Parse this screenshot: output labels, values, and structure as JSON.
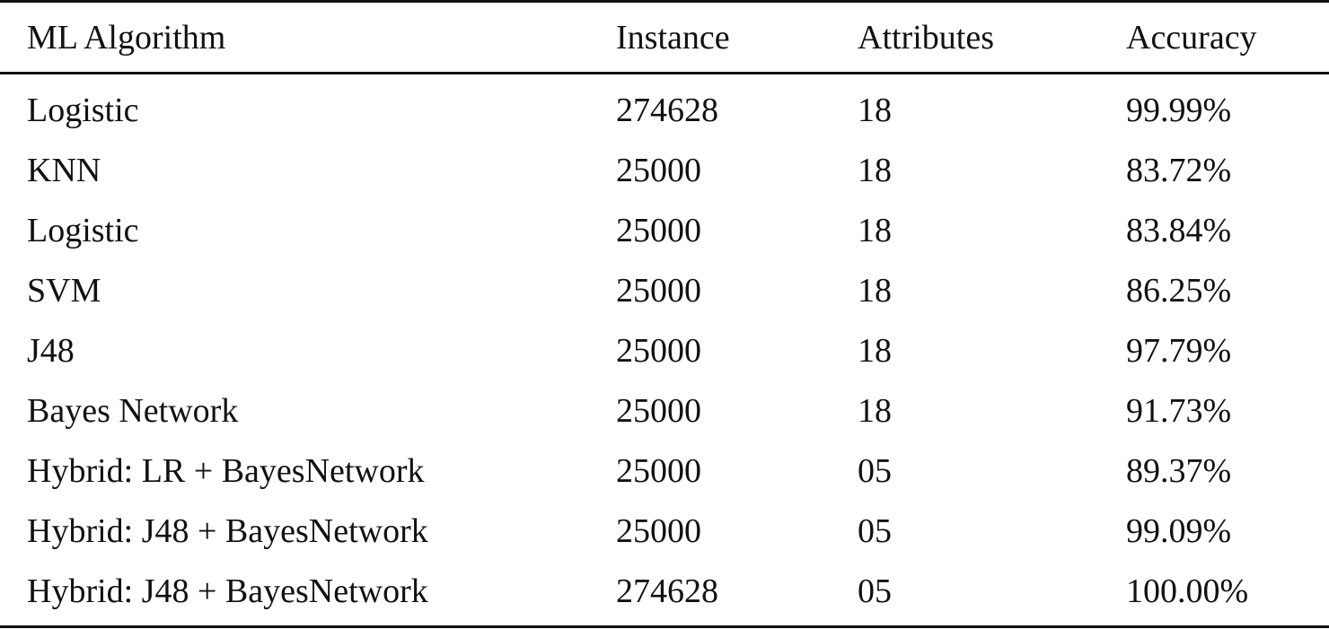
{
  "table": {
    "headers": [
      "ML Algorithm",
      "Instance",
      "Attributes",
      "Accuracy"
    ],
    "rows": [
      [
        "Logistic",
        "274628",
        "18",
        "99.99%"
      ],
      [
        "KNN",
        "25000",
        "18",
        "83.72%"
      ],
      [
        "Logistic",
        "25000",
        "18",
        "83.84%"
      ],
      [
        "SVM",
        "25000",
        "18",
        "86.25%"
      ],
      [
        "J48",
        "25000",
        "18",
        "97.79%"
      ],
      [
        "Bayes Network",
        "25000",
        "18",
        "91.73%"
      ],
      [
        "Hybrid: LR + BayesNetwork",
        "25000",
        "05",
        "89.37%"
      ],
      [
        "Hybrid: J48 + BayesNetwork",
        "25000",
        "05",
        "99.09%"
      ],
      [
        "Hybrid: J48 + BayesNetwork",
        "274628",
        "05",
        "100.00%"
      ]
    ]
  }
}
